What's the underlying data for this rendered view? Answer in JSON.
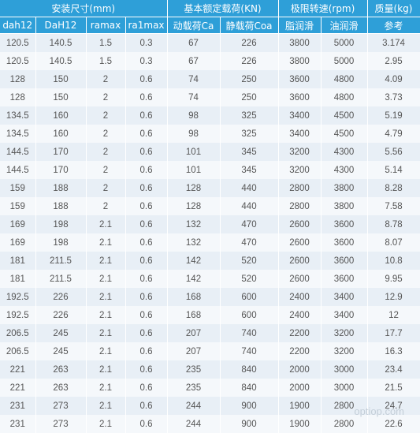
{
  "header": {
    "groups": [
      "安装尺寸(mm)",
      "基本额定载荷(KN)",
      "极限转速(rpm)",
      "质量(kg)"
    ],
    "columns": [
      "dah12",
      "DaH12",
      "ramax",
      "ra1max",
      "动载荷Ca",
      "静载荷Coa",
      "脂润滑",
      "油润滑",
      "参考"
    ]
  },
  "rows": [
    [
      "120.5",
      "140.5",
      "1.5",
      "0.3",
      "67",
      "226",
      "3800",
      "5000",
      "3.174"
    ],
    [
      "120.5",
      "140.5",
      "1.5",
      "0.3",
      "67",
      "226",
      "3800",
      "5000",
      "2.95"
    ],
    [
      "128",
      "150",
      "2",
      "0.6",
      "74",
      "250",
      "3600",
      "4800",
      "4.09"
    ],
    [
      "128",
      "150",
      "2",
      "0.6",
      "74",
      "250",
      "3600",
      "4800",
      "3.73"
    ],
    [
      "134.5",
      "160",
      "2",
      "0.6",
      "98",
      "325",
      "3400",
      "4500",
      "5.19"
    ],
    [
      "134.5",
      "160",
      "2",
      "0.6",
      "98",
      "325",
      "3400",
      "4500",
      "4.79"
    ],
    [
      "144.5",
      "170",
      "2",
      "0.6",
      "101",
      "345",
      "3200",
      "4300",
      "5.56"
    ],
    [
      "144.5",
      "170",
      "2",
      "0.6",
      "101",
      "345",
      "3200",
      "4300",
      "5.14"
    ],
    [
      "159",
      "188",
      "2",
      "0.6",
      "128",
      "440",
      "2800",
      "3800",
      "8.28"
    ],
    [
      "159",
      "188",
      "2",
      "0.6",
      "128",
      "440",
      "2800",
      "3800",
      "7.58"
    ],
    [
      "169",
      "198",
      "2.1",
      "0.6",
      "132",
      "470",
      "2600",
      "3600",
      "8.78"
    ],
    [
      "169",
      "198",
      "2.1",
      "0.6",
      "132",
      "470",
      "2600",
      "3600",
      "8.07"
    ],
    [
      "181",
      "211.5",
      "2.1",
      "0.6",
      "142",
      "520",
      "2600",
      "3600",
      "10.8"
    ],
    [
      "181",
      "211.5",
      "2.1",
      "0.6",
      "142",
      "520",
      "2600",
      "3600",
      "9.95"
    ],
    [
      "192.5",
      "226",
      "2.1",
      "0.6",
      "168",
      "600",
      "2400",
      "3400",
      "12.9"
    ],
    [
      "192.5",
      "226",
      "2.1",
      "0.6",
      "168",
      "600",
      "2400",
      "3400",
      "12"
    ],
    [
      "206.5",
      "245",
      "2.1",
      "0.6",
      "207",
      "740",
      "2200",
      "3200",
      "17.7"
    ],
    [
      "206.5",
      "245",
      "2.1",
      "0.6",
      "207",
      "740",
      "2200",
      "3200",
      "16.3"
    ],
    [
      "221",
      "263",
      "2.1",
      "0.6",
      "235",
      "840",
      "2000",
      "3000",
      "23.4"
    ],
    [
      "221",
      "263",
      "2.1",
      "0.6",
      "235",
      "840",
      "2000",
      "3000",
      "21.5"
    ],
    [
      "231",
      "273",
      "2.1",
      "0.6",
      "244",
      "900",
      "1900",
      "2800",
      "24.7"
    ],
    [
      "231",
      "273",
      "2.1",
      "0.6",
      "244",
      "900",
      "1900",
      "2800",
      "22.6"
    ]
  ],
  "watermark": "optiop.com"
}
